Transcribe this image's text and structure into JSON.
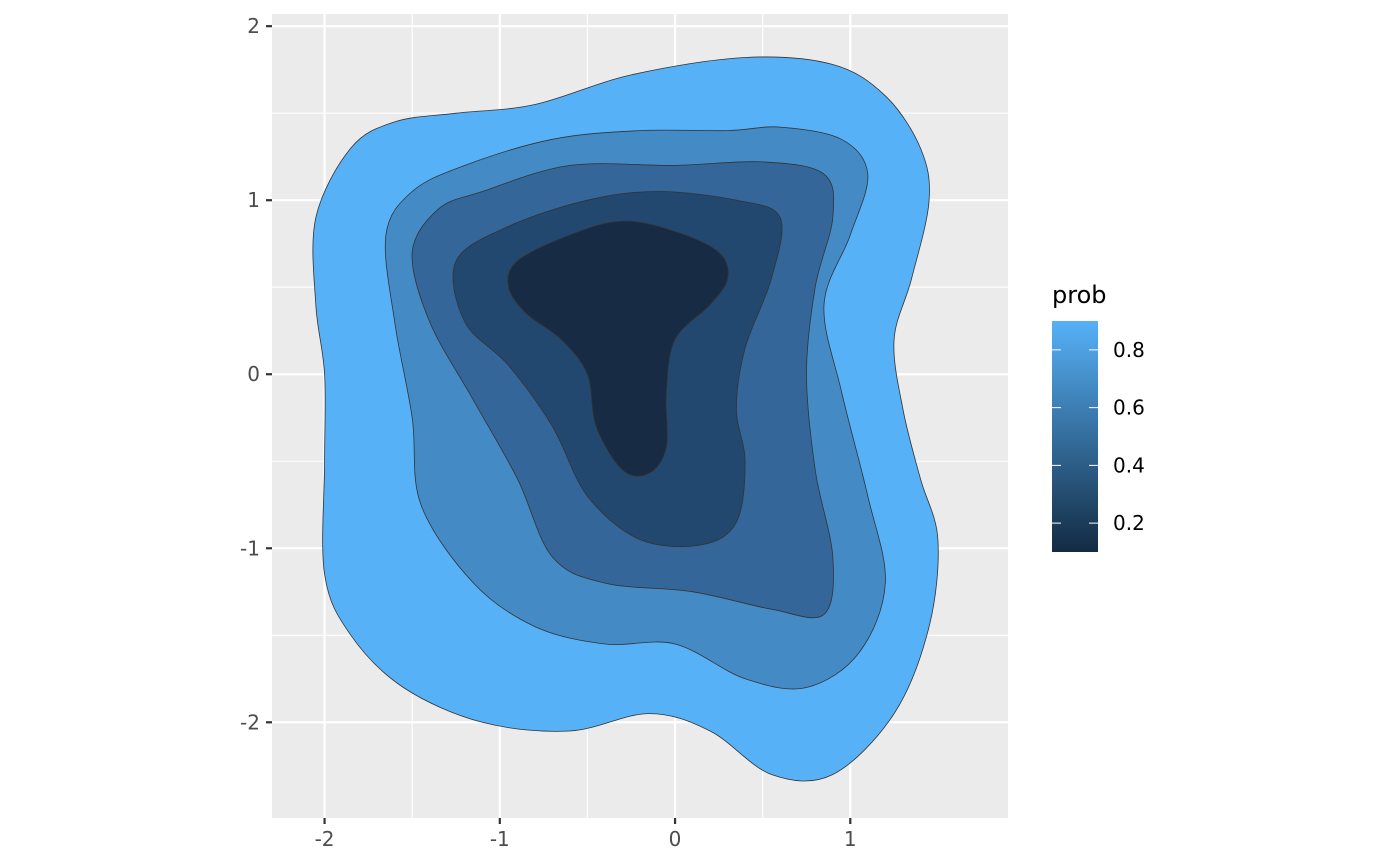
{
  "chart_data": {
    "type": "contour",
    "title": "",
    "xlabel": "",
    "ylabel": "",
    "xlim": [
      -2.3,
      1.9
    ],
    "ylim": [
      -2.55,
      2.07
    ],
    "x_ticks": [
      {
        "value": -2,
        "label": "-2"
      },
      {
        "value": -1,
        "label": "-1"
      },
      {
        "value": 0,
        "label": "0"
      },
      {
        "value": 1,
        "label": "1"
      }
    ],
    "y_ticks": [
      {
        "value": 2,
        "label": "2"
      },
      {
        "value": 1,
        "label": "1"
      },
      {
        "value": 0,
        "label": "0"
      },
      {
        "value": -1,
        "label": "-1"
      },
      {
        "value": -2,
        "label": "-2"
      }
    ],
    "grid": true,
    "legend": {
      "title": "prob",
      "position": "right",
      "range": [
        0.1,
        0.9
      ],
      "labels": [
        {
          "value": 0.8,
          "label": "0.8"
        },
        {
          "value": 0.6,
          "label": "0.6"
        },
        {
          "value": 0.4,
          "label": "0.4"
        },
        {
          "value": 0.2,
          "label": "0.2"
        }
      ],
      "color_low": "#132B43",
      "color_high": "#56B1F7"
    },
    "levels": [
      {
        "prob": 0.9,
        "color": "#56B1F7",
        "points": [
          [
            -0.8,
            1.55
          ],
          [
            -0.25,
            1.72
          ],
          [
            0.4,
            1.82
          ],
          [
            0.9,
            1.78
          ],
          [
            1.2,
            1.6
          ],
          [
            1.4,
            1.3
          ],
          [
            1.45,
            1.0
          ],
          [
            1.35,
            0.55
          ],
          [
            1.25,
            0.2
          ],
          [
            1.3,
            -0.2
          ],
          [
            1.4,
            -0.6
          ],
          [
            1.5,
            -0.95
          ],
          [
            1.45,
            -1.45
          ],
          [
            1.25,
            -1.95
          ],
          [
            0.9,
            -2.3
          ],
          [
            0.55,
            -2.3
          ],
          [
            0.2,
            -2.05
          ],
          [
            -0.15,
            -1.95
          ],
          [
            -0.6,
            -2.05
          ],
          [
            -1.1,
            -2.0
          ],
          [
            -1.55,
            -1.8
          ],
          [
            -1.85,
            -1.5
          ],
          [
            -2.0,
            -1.15
          ],
          [
            -2.0,
            -0.5
          ],
          [
            -2.0,
            0.0
          ],
          [
            -2.05,
            0.4
          ],
          [
            -2.05,
            0.9
          ],
          [
            -1.85,
            1.3
          ],
          [
            -1.6,
            1.45
          ],
          [
            -1.25,
            1.5
          ]
        ]
      },
      {
        "prob": 0.7,
        "color": "#448BC6",
        "points": [
          [
            -1.2,
            1.2
          ],
          [
            -0.7,
            1.35
          ],
          [
            -0.2,
            1.4
          ],
          [
            0.3,
            1.4
          ],
          [
            0.6,
            1.42
          ],
          [
            0.95,
            1.35
          ],
          [
            1.1,
            1.15
          ],
          [
            1.0,
            0.8
          ],
          [
            0.85,
            0.4
          ],
          [
            0.95,
            -0.1
          ],
          [
            1.1,
            -0.7
          ],
          [
            1.2,
            -1.2
          ],
          [
            1.05,
            -1.6
          ],
          [
            0.75,
            -1.8
          ],
          [
            0.4,
            -1.75
          ],
          [
            0.0,
            -1.55
          ],
          [
            -0.4,
            -1.55
          ],
          [
            -0.8,
            -1.45
          ],
          [
            -1.15,
            -1.2
          ],
          [
            -1.45,
            -0.75
          ],
          [
            -1.5,
            -0.25
          ],
          [
            -1.6,
            0.3
          ],
          [
            -1.65,
            0.8
          ],
          [
            -1.5,
            1.05
          ]
        ]
      },
      {
        "prob": 0.5,
        "color": "#346699",
        "points": [
          [
            -1.1,
            1.05
          ],
          [
            -0.6,
            1.2
          ],
          [
            0.0,
            1.2
          ],
          [
            0.5,
            1.22
          ],
          [
            0.85,
            1.15
          ],
          [
            0.9,
            0.9
          ],
          [
            0.8,
            0.5
          ],
          [
            0.75,
            0.0
          ],
          [
            0.8,
            -0.55
          ],
          [
            0.9,
            -1.05
          ],
          [
            0.85,
            -1.38
          ],
          [
            0.55,
            -1.35
          ],
          [
            0.1,
            -1.25
          ],
          [
            -0.4,
            -1.2
          ],
          [
            -0.7,
            -1.05
          ],
          [
            -0.9,
            -0.6
          ],
          [
            -1.15,
            -0.15
          ],
          [
            -1.4,
            0.3
          ],
          [
            -1.5,
            0.7
          ],
          [
            -1.35,
            0.95
          ]
        ]
      },
      {
        "prob": 0.3,
        "color": "#23486F",
        "points": [
          [
            -0.95,
            0.85
          ],
          [
            -0.5,
            1.0
          ],
          [
            -0.1,
            1.05
          ],
          [
            0.35,
            1.0
          ],
          [
            0.6,
            0.9
          ],
          [
            0.55,
            0.55
          ],
          [
            0.4,
            0.15
          ],
          [
            0.35,
            -0.2
          ],
          [
            0.4,
            -0.5
          ],
          [
            0.35,
            -0.85
          ],
          [
            0.15,
            -0.98
          ],
          [
            -0.2,
            -0.95
          ],
          [
            -0.5,
            -0.7
          ],
          [
            -0.7,
            -0.3
          ],
          [
            -0.95,
            0.05
          ],
          [
            -1.2,
            0.3
          ],
          [
            -1.25,
            0.65
          ]
        ]
      },
      {
        "prob": 0.1,
        "color": "#172C44",
        "points": [
          [
            -0.9,
            0.65
          ],
          [
            -0.6,
            0.8
          ],
          [
            -0.3,
            0.88
          ],
          [
            0.0,
            0.82
          ],
          [
            0.25,
            0.7
          ],
          [
            0.3,
            0.55
          ],
          [
            0.2,
            0.4
          ],
          [
            0.0,
            0.2
          ],
          [
            -0.05,
            -0.1
          ],
          [
            -0.05,
            -0.42
          ],
          [
            -0.15,
            -0.57
          ],
          [
            -0.3,
            -0.55
          ],
          [
            -0.45,
            -0.3
          ],
          [
            -0.5,
            0.0
          ],
          [
            -0.65,
            0.2
          ],
          [
            -0.85,
            0.35
          ],
          [
            -0.95,
            0.5
          ]
        ]
      }
    ]
  }
}
